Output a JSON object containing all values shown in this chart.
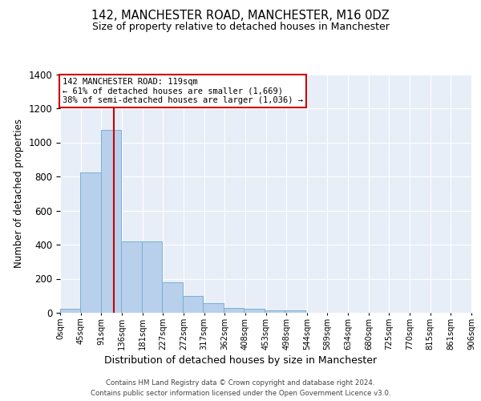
{
  "title": "142, MANCHESTER ROAD, MANCHESTER, M16 0DZ",
  "subtitle": "Size of property relative to detached houses in Manchester",
  "xlabel": "Distribution of detached houses by size in Manchester",
  "ylabel": "Number of detached properties",
  "bar_color": "#b8d0eb",
  "bar_edge_color": "#7aafd4",
  "background_color": "#e8eef8",
  "grid_color": "#ffffff",
  "bin_width": 45,
  "bin_starts": [
    0,
    45,
    90,
    135,
    180,
    225,
    270,
    315,
    360,
    405,
    450,
    495,
    540,
    585,
    630,
    675,
    720,
    765,
    810,
    855
  ],
  "bar_heights": [
    25,
    825,
    1075,
    420,
    420,
    180,
    100,
    55,
    30,
    25,
    15,
    15,
    0,
    0,
    0,
    0,
    0,
    0,
    0,
    0
  ],
  "subject_size": 119,
  "subject_line_color": "#cc0000",
  "annotation_text": "142 MANCHESTER ROAD: 119sqm\n← 61% of detached houses are smaller (1,669)\n38% of semi-detached houses are larger (1,036) →",
  "annotation_box_color": "#cc0000",
  "xlim": [
    0,
    906
  ],
  "ylim": [
    0,
    1400
  ],
  "yticks": [
    0,
    200,
    400,
    600,
    800,
    1000,
    1200,
    1400
  ],
  "xtick_labels": [
    "0sqm",
    "45sqm",
    "91sqm",
    "136sqm",
    "181sqm",
    "227sqm",
    "272sqm",
    "317sqm",
    "362sqm",
    "408sqm",
    "453sqm",
    "498sqm",
    "544sqm",
    "589sqm",
    "634sqm",
    "680sqm",
    "725sqm",
    "770sqm",
    "815sqm",
    "861sqm",
    "906sqm"
  ],
  "footer_line1": "Contains HM Land Registry data © Crown copyright and database right 2024.",
  "footer_line2": "Contains public sector information licensed under the Open Government Licence v3.0."
}
